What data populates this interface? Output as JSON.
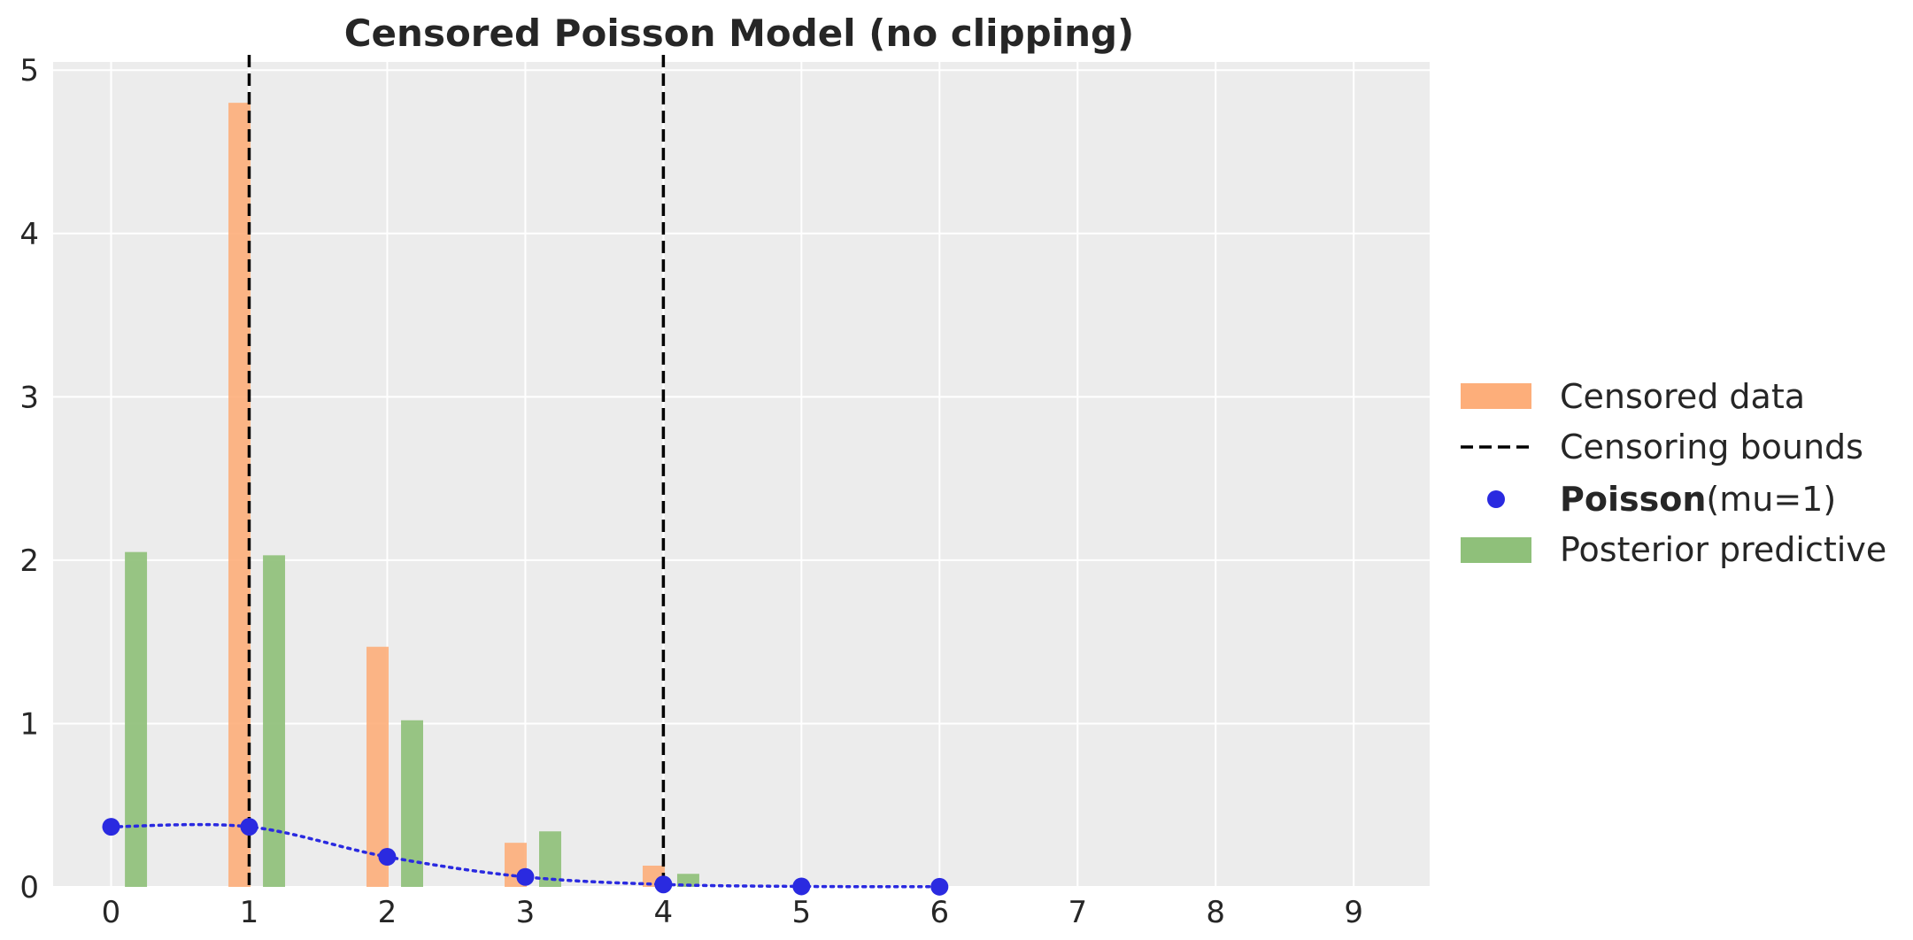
{
  "chart_data": {
    "type": "bar",
    "title": "Censored Poisson Model (no clipping)",
    "xlabel": "",
    "ylabel": "",
    "xlim": [
      -0.42,
      9.55
    ],
    "ylim": [
      0,
      5.05
    ],
    "xticks": [
      0,
      1,
      2,
      3,
      4,
      5,
      6,
      7,
      8,
      9
    ],
    "yticks": [
      0,
      1,
      2,
      3,
      4,
      5
    ],
    "grid": true,
    "legend_position": "right",
    "series": [
      {
        "name": "Censored data",
        "kind": "bar",
        "color": "#fdae7a",
        "x": [
          1,
          2,
          3,
          4
        ],
        "values": [
          4.8,
          1.47,
          0.27,
          0.13
        ]
      },
      {
        "name": "Posterior predictive",
        "kind": "bar",
        "color": "#8fc07a",
        "x": [
          0,
          1,
          2,
          3,
          4
        ],
        "values": [
          2.05,
          2.03,
          1.02,
          0.34,
          0.08
        ]
      },
      {
        "name": "Poisson",
        "name_suffix": "(mu=1)",
        "kind": "points",
        "color": "#2a2ae0",
        "x": [
          0,
          1,
          2,
          3,
          4,
          5,
          6
        ],
        "values": [
          0.368,
          0.368,
          0.184,
          0.061,
          0.015,
          0.003,
          0.001
        ]
      }
    ],
    "vlines": {
      "name": "Censoring bounds",
      "color": "#000000",
      "x": [
        1,
        4
      ]
    }
  }
}
